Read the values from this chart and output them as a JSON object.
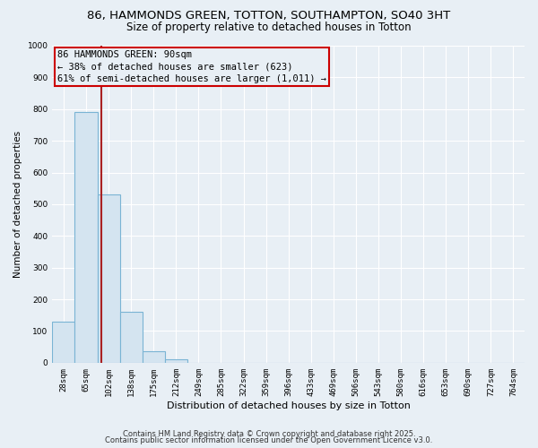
{
  "title_line1": "86, HAMMONDS GREEN, TOTTON, SOUTHAMPTON, SO40 3HT",
  "title_line2": "Size of property relative to detached houses in Totton",
  "categories": [
    "28sqm",
    "65sqm",
    "102sqm",
    "138sqm",
    "175sqm",
    "212sqm",
    "249sqm",
    "285sqm",
    "322sqm",
    "359sqm",
    "396sqm",
    "433sqm",
    "469sqm",
    "506sqm",
    "543sqm",
    "580sqm",
    "616sqm",
    "653sqm",
    "690sqm",
    "727sqm",
    "764sqm"
  ],
  "values": [
    130,
    790,
    530,
    160,
    35,
    10,
    0,
    0,
    0,
    0,
    0,
    0,
    0,
    0,
    0,
    0,
    0,
    0,
    0,
    0,
    0
  ],
  "bar_color": "#d4e4f0",
  "bar_edge_color": "#7ab4d4",
  "ylabel": "Number of detached properties",
  "xlabel": "Distribution of detached houses by size in Totton",
  "ylim": [
    0,
    1000
  ],
  "yticks": [
    0,
    100,
    200,
    300,
    400,
    500,
    600,
    700,
    800,
    900,
    1000
  ],
  "vline_color": "#aa2222",
  "vline_x_index": 1.68,
  "annotation_text": "86 HAMMONDS GREEN: 90sqm\n← 38% of detached houses are smaller (623)\n61% of semi-detached houses are larger (1,011) →",
  "annotation_box_color": "#cc0000",
  "footer1": "Contains HM Land Registry data © Crown copyright and database right 2025.",
  "footer2": "Contains public sector information licensed under the Open Government Licence v3.0.",
  "bg_color": "#e8eff5",
  "grid_color": "#ffffff",
  "title_fontsize": 9.5,
  "subtitle_fontsize": 8.5,
  "annotation_fontsize": 7.5,
  "ylabel_fontsize": 7.5,
  "xlabel_fontsize": 8,
  "footer_fontsize": 6,
  "tick_fontsize": 6.5
}
